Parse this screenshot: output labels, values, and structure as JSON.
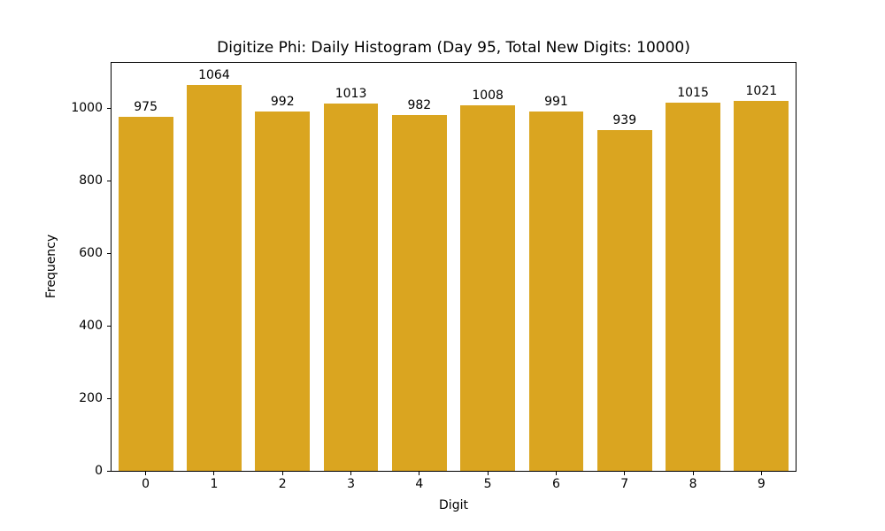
{
  "chart_data": {
    "type": "bar",
    "title": "Digitize Phi: Daily Histogram (Day 95, Total New Digits: 10000)",
    "xlabel": "Digit",
    "ylabel": "Frequency",
    "categories": [
      "0",
      "1",
      "2",
      "3",
      "4",
      "5",
      "6",
      "7",
      "8",
      "9"
    ],
    "values": [
      975,
      1064,
      992,
      1013,
      982,
      1008,
      991,
      939,
      1015,
      1021
    ],
    "bar_labels": [
      "975",
      "1064",
      "992",
      "1013",
      "982",
      "1008",
      "991",
      "939",
      "1015",
      "1021"
    ],
    "yticks": [
      0,
      200,
      400,
      600,
      800,
      1000
    ],
    "ylim": [
      0,
      1125
    ],
    "bar_width_fraction": 0.8,
    "bar_color": "#DAA520",
    "axis_color": "#000000",
    "background_color": "#ffffff",
    "grid": false,
    "legend": "none"
  }
}
